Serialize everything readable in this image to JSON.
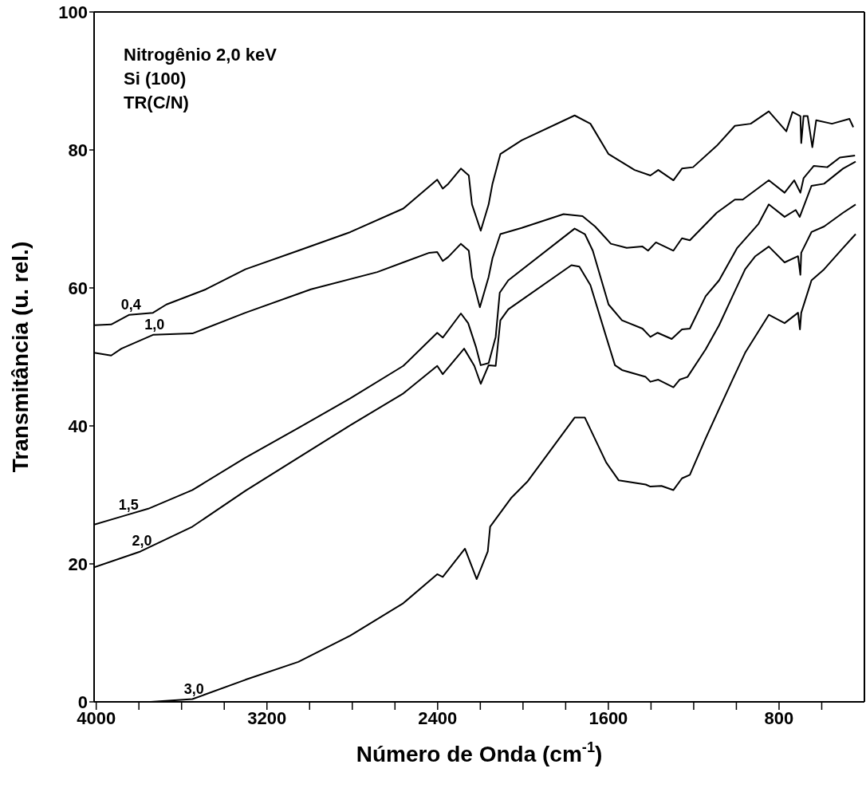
{
  "chart_data": {
    "type": "line",
    "xlabel": "Número de Onda (cm$^{-1}$)",
    "ylabel": "Transmitância (u. rel.)",
    "annotations": [
      "Nitrogênio 2,0 keV",
      "Si (100)",
      "TR(C/N)"
    ],
    "xlim": [
      4010,
      400
    ],
    "xticks": [
      {
        "value": 4000,
        "label": "4000"
      },
      {
        "value": 3800,
        "label": null
      },
      {
        "value": 3600,
        "label": null
      },
      {
        "value": 3400,
        "label": null
      },
      {
        "value": 3200,
        "label": "3200"
      },
      {
        "value": 3000,
        "label": null
      },
      {
        "value": 2800,
        "label": null
      },
      {
        "value": 2600,
        "label": null
      },
      {
        "value": 2400,
        "label": "2400"
      },
      {
        "value": 2200,
        "label": null
      },
      {
        "value": 2000,
        "label": null
      },
      {
        "value": 1800,
        "label": null
      },
      {
        "value": 1600,
        "label": "1600"
      },
      {
        "value": 1400,
        "label": null
      },
      {
        "value": 1200,
        "label": null
      },
      {
        "value": 1000,
        "label": null
      },
      {
        "value": 800,
        "label": "800"
      },
      {
        "value": 600,
        "label": null
      }
    ],
    "ylim": [
      0,
      100
    ],
    "yticks": [
      0,
      20,
      40,
      60,
      80,
      100
    ],
    "grid": false,
    "legend": false,
    "marker": "none",
    "line_style": "solid",
    "series": [
      {
        "name": "0,4",
        "color": "#000000",
        "x": [
          4010,
          3930,
          3845,
          3734,
          3671,
          3486,
          3301,
          3053,
          2809,
          2561,
          2402,
          2376,
          2350,
          2291,
          2254,
          2239,
          2198,
          2161,
          2143,
          2106,
          2006,
          1758,
          1684,
          1599,
          1477,
          1403,
          1366,
          1295,
          1255,
          1203,
          1092,
          1007,
          933,
          848,
          766,
          737,
          700,
          696,
          685,
          666,
          644,
          626,
          552,
          470,
          452
        ],
        "values": [
          54.6,
          54.7,
          56.1,
          56.4,
          57.6,
          59.8,
          62.7,
          65.4,
          68.1,
          71.5,
          75.7,
          74.4,
          75.1,
          77.3,
          76.3,
          72.1,
          68.3,
          72.1,
          75.1,
          79.4,
          81.4,
          85.0,
          83.8,
          79.4,
          77.1,
          76.3,
          77.1,
          75.6,
          77.3,
          77.5,
          80.6,
          83.5,
          83.8,
          85.6,
          82.7,
          85.5,
          84.9,
          81.0,
          84.9,
          84.9,
          80.4,
          84.3,
          83.8,
          84.5,
          83.3
        ]
      },
      {
        "name": "1,0",
        "color": "#000000",
        "x": [
          4010,
          3930,
          3882,
          3734,
          3549,
          3301,
          2994,
          2683,
          2439,
          2402,
          2376,
          2350,
          2291,
          2254,
          2239,
          2202,
          2161,
          2143,
          2106,
          2006,
          1810,
          1721,
          1662,
          1588,
          1514,
          1440,
          1414,
          1377,
          1295,
          1255,
          1218,
          1092,
          1007,
          970,
          848,
          774,
          729,
          700,
          685,
          637,
          574,
          515,
          444
        ],
        "values": [
          50.6,
          50.2,
          51.2,
          53.2,
          53.4,
          56.4,
          59.8,
          62.3,
          65.1,
          65.2,
          63.9,
          64.5,
          66.4,
          65.4,
          61.6,
          57.2,
          61.6,
          64.3,
          67.8,
          68.7,
          70.7,
          70.4,
          68.9,
          66.4,
          65.8,
          66.0,
          65.4,
          66.6,
          65.4,
          67.2,
          66.9,
          70.9,
          72.8,
          72.8,
          75.6,
          73.8,
          75.6,
          73.8,
          75.9,
          77.7,
          77.5,
          78.9,
          79.2
        ]
      },
      {
        "name": "1,5",
        "color": "#000000",
        "x": [
          4010,
          3856,
          3756,
          3549,
          3301,
          3053,
          2809,
          2561,
          2402,
          2376,
          2291,
          2257,
          2220,
          2198,
          2161,
          2128,
          2109,
          2069,
          1758,
          1710,
          1673,
          1599,
          1536,
          1440,
          1403,
          1369,
          1303,
          1255,
          1218,
          1144,
          1081,
          996,
          896,
          848,
          774,
          722,
          703,
          648,
          589,
          500,
          441
        ],
        "values": [
          25.7,
          27.1,
          28.0,
          30.7,
          35.4,
          39.7,
          44.0,
          48.7,
          53.5,
          52.8,
          56.3,
          54.9,
          51.4,
          48.8,
          49.1,
          52.9,
          59.3,
          61.1,
          68.6,
          67.8,
          65.4,
          57.6,
          55.3,
          54.1,
          52.9,
          53.5,
          52.6,
          54.0,
          54.1,
          58.8,
          61.1,
          65.8,
          69.3,
          72.1,
          70.3,
          71.3,
          70.3,
          74.8,
          75.1,
          77.3,
          78.3
        ]
      },
      {
        "name": "2,0",
        "color": "#000000",
        "x": [
          4010,
          3793,
          3549,
          3301,
          3053,
          2809,
          2561,
          2402,
          2376,
          2276,
          2228,
          2198,
          2161,
          2128,
          2106,
          2069,
          1773,
          1736,
          1684,
          1610,
          1569,
          1536,
          1425,
          1403,
          1366,
          1295,
          1266,
          1229,
          1144,
          1081,
          1018,
          959,
          911,
          848,
          774,
          711,
          700,
          696,
          648,
          589,
          500,
          441
        ],
        "values": [
          19.5,
          21.8,
          25.4,
          30.6,
          35.4,
          40.1,
          44.7,
          48.7,
          47.5,
          51.2,
          48.7,
          46.1,
          48.8,
          48.7,
          55.3,
          56.9,
          63.3,
          63.1,
          60.4,
          52.9,
          48.8,
          48.1,
          47.1,
          46.4,
          46.7,
          45.6,
          46.7,
          47.1,
          51.1,
          54.6,
          58.8,
          62.7,
          64.6,
          66.0,
          63.7,
          64.6,
          61.9,
          65.1,
          68.1,
          68.9,
          70.9,
          72.1
        ]
      },
      {
        "name": "3,0",
        "color": "#000000",
        "x": [
          3745,
          3549,
          3301,
          3053,
          2809,
          2561,
          2402,
          2376,
          2272,
          2217,
          2165,
          2154,
          2054,
          1980,
          1758,
          1710,
          1610,
          1551,
          1425,
          1403,
          1351,
          1295,
          1255,
          1218,
          1144,
          1070,
          1018,
          959,
          848,
          774,
          711,
          702,
          696,
          648,
          589,
          500,
          441
        ],
        "values": [
          0.0,
          0.4,
          3.2,
          5.8,
          9.6,
          14.3,
          18.5,
          18.1,
          22.2,
          17.8,
          21.8,
          25.4,
          29.6,
          31.9,
          41.2,
          41.2,
          34.7,
          32.1,
          31.5,
          31.2,
          31.3,
          30.7,
          32.4,
          32.9,
          38.2,
          43.2,
          46.7,
          50.6,
          56.1,
          54.9,
          56.4,
          54.0,
          56.4,
          61.1,
          62.7,
          65.8,
          67.8
        ]
      }
    ]
  }
}
